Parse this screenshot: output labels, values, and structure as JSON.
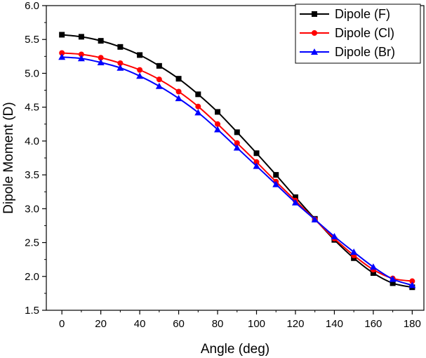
{
  "chart_data": {
    "type": "line",
    "title": "",
    "xlabel": "Angle (deg)",
    "ylabel": "Dipole Moment (D)",
    "xlim": [
      -8,
      186
    ],
    "ylim": [
      1.5,
      6.0
    ],
    "x": [
      0,
      10,
      20,
      30,
      40,
      50,
      60,
      70,
      80,
      90,
      100,
      110,
      120,
      130,
      140,
      150,
      160,
      170,
      180
    ],
    "xticks": [
      0,
      20,
      40,
      60,
      80,
      100,
      120,
      140,
      160,
      180
    ],
    "yticks": [
      1.5,
      2.0,
      2.5,
      3.0,
      3.5,
      4.0,
      4.5,
      5.0,
      5.5,
      6.0
    ],
    "xtick_labels": [
      "0",
      "20",
      "40",
      "60",
      "80",
      "100",
      "120",
      "140",
      "160",
      "180"
    ],
    "ytick_labels": [
      "1.5",
      "2.0",
      "2.5",
      "3.0",
      "3.5",
      "4.0",
      "4.5",
      "5.0",
      "5.5",
      "6.0"
    ],
    "legend_position": "top-right",
    "grid": false,
    "series": [
      {
        "name": "Dipole (F)",
        "color": "#000000",
        "marker": "square",
        "values": [
          5.57,
          5.54,
          5.48,
          5.39,
          5.27,
          5.11,
          4.92,
          4.69,
          4.43,
          4.13,
          3.82,
          3.5,
          3.17,
          2.85,
          2.54,
          2.27,
          2.05,
          1.9,
          1.84
        ]
      },
      {
        "name": "Dipole (Cl)",
        "color": "#ff0000",
        "marker": "circle",
        "values": [
          5.3,
          5.28,
          5.23,
          5.15,
          5.05,
          4.91,
          4.73,
          4.51,
          4.25,
          3.97,
          3.69,
          3.4,
          3.12,
          2.84,
          2.56,
          2.31,
          2.1,
          1.97,
          1.93
        ]
      },
      {
        "name": "Dipole (Br)",
        "color": "#0000ff",
        "marker": "triangle",
        "values": [
          5.24,
          5.22,
          5.16,
          5.08,
          4.96,
          4.81,
          4.63,
          4.42,
          4.17,
          3.9,
          3.63,
          3.36,
          3.09,
          2.84,
          2.59,
          2.36,
          2.14,
          1.96,
          1.87
        ]
      }
    ]
  }
}
